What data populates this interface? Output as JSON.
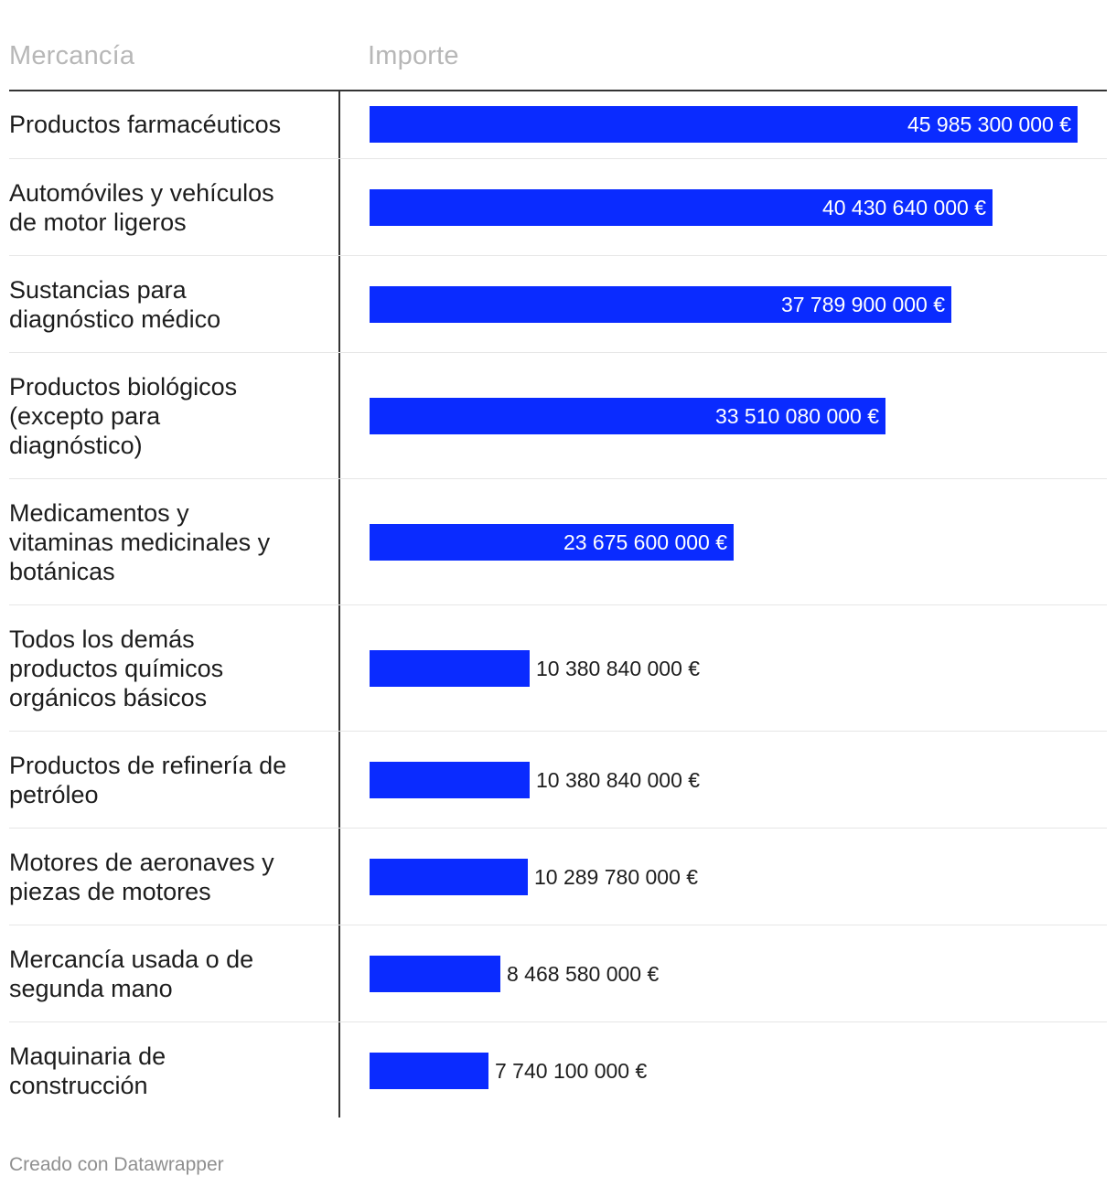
{
  "header": {
    "col1": "Mercancía",
    "col2": "Importe"
  },
  "chart_data": {
    "type": "bar",
    "orientation": "horizontal",
    "xlabel": "Importe",
    "ylabel": "Mercancía",
    "bar_color": "#0a2bff",
    "xlim": [
      0,
      47500000000
    ],
    "categories": [
      "Productos farmacéuticos",
      "Automóviles y vehículos de motor ligeros",
      "Sustancias para diagnóstico médico",
      "Productos biológicos (excepto para diagnóstico)",
      "Medicamentos y vitaminas medicinales y botánicas",
      "Todos los demás productos químicos orgánicos básicos",
      "Productos de refinería de petróleo",
      "Motores de aeronaves y piezas de motores",
      "Mercancía usada o de segunda mano",
      "Maquinaria de construcción"
    ],
    "values": [
      45985300000,
      40430640000,
      37789900000,
      33510080000,
      23675600000,
      10380840000,
      10380840000,
      10289780000,
      8468580000,
      7740100000
    ],
    "value_labels": [
      "45 985 300 000 €",
      "40 430 640 000 €",
      "37 789 900 000 €",
      "33 510 080 000 €",
      "23 675 600 000 €",
      "10 380 840 000 €",
      "10 380 840 000 €",
      "10 289 780 000 €",
      "8 468 580 000 €",
      "7 740 100 000 €"
    ]
  },
  "footer": {
    "credit": "Creado con Datawrapper"
  }
}
